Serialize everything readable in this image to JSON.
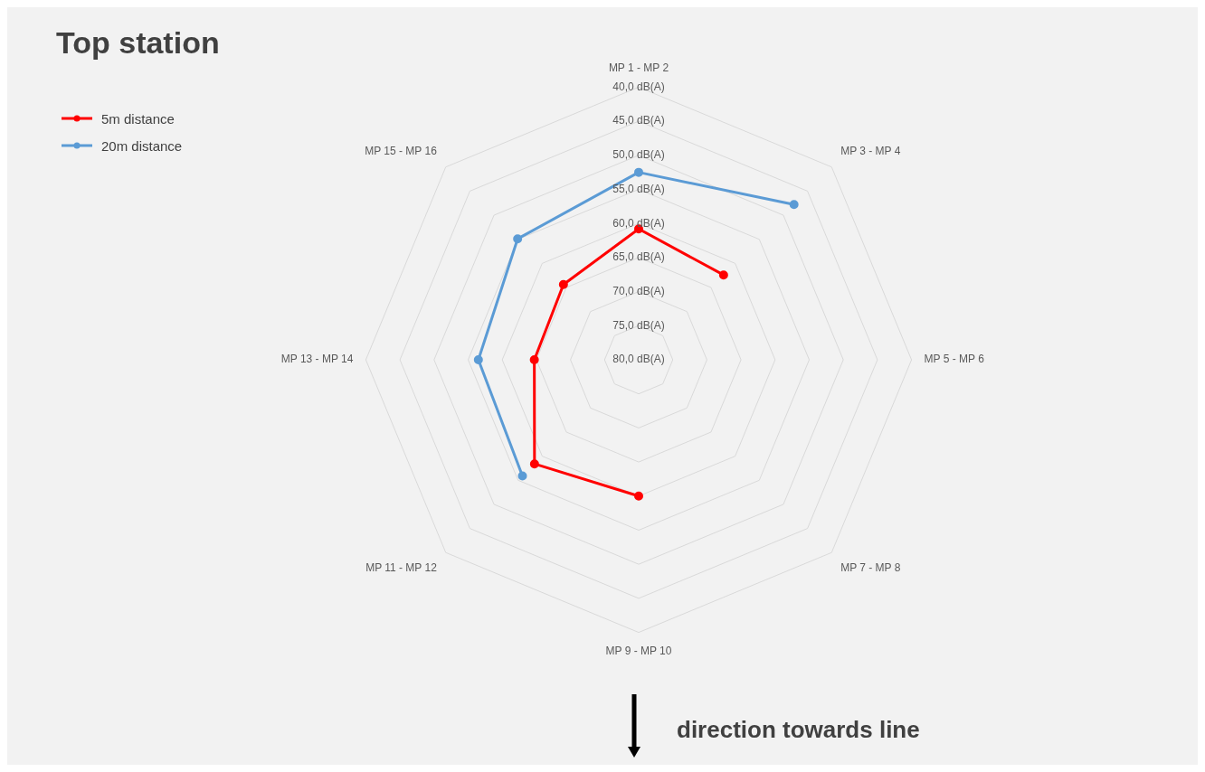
{
  "chart_data": {
    "type": "radar",
    "title": "Top station",
    "categories": [
      "MP 1 - MP 2",
      "MP 3 - MP 4",
      "MP 5 - MP 6",
      "MP 7 - MP 8",
      "MP 9 - MP 10",
      "MP 11 - MP 12",
      "MP 13 - MP 14",
      "MP 15 - MP 16"
    ],
    "series": [
      {
        "name": "5m distance",
        "color": "#ff0000",
        "values": [
          60.8,
          62.4,
          null,
          null,
          60.0,
          58.4,
          64.7,
          64.4
        ]
      },
      {
        "name": "20m distance",
        "color": "#5b9bd5",
        "values": [
          52.5,
          47.8,
          null,
          null,
          null,
          55.9,
          56.5,
          54.9
        ]
      }
    ],
    "ylim": [
      80,
      40
    ],
    "yticks": [
      {
        "value": 40,
        "label": "40,0 dB(A)"
      },
      {
        "value": 45,
        "label": "45,0 dB(A)"
      },
      {
        "value": 50,
        "label": "50,0 dB(A)"
      },
      {
        "value": 55,
        "label": "55,0 dB(A)"
      },
      {
        "value": 60,
        "label": "60,0 dB(A)"
      },
      {
        "value": 65,
        "label": "65,0 dB(A)"
      },
      {
        "value": 70,
        "label": "70,0 dB(A)"
      },
      {
        "value": 75,
        "label": "75,0 dB(A)"
      },
      {
        "value": 80,
        "label": "80,0 dB(A)"
      }
    ],
    "grid": true,
    "legend": "top left",
    "marker": "circle",
    "line_style": "solid",
    "annotations": [
      "direction towards line"
    ]
  }
}
